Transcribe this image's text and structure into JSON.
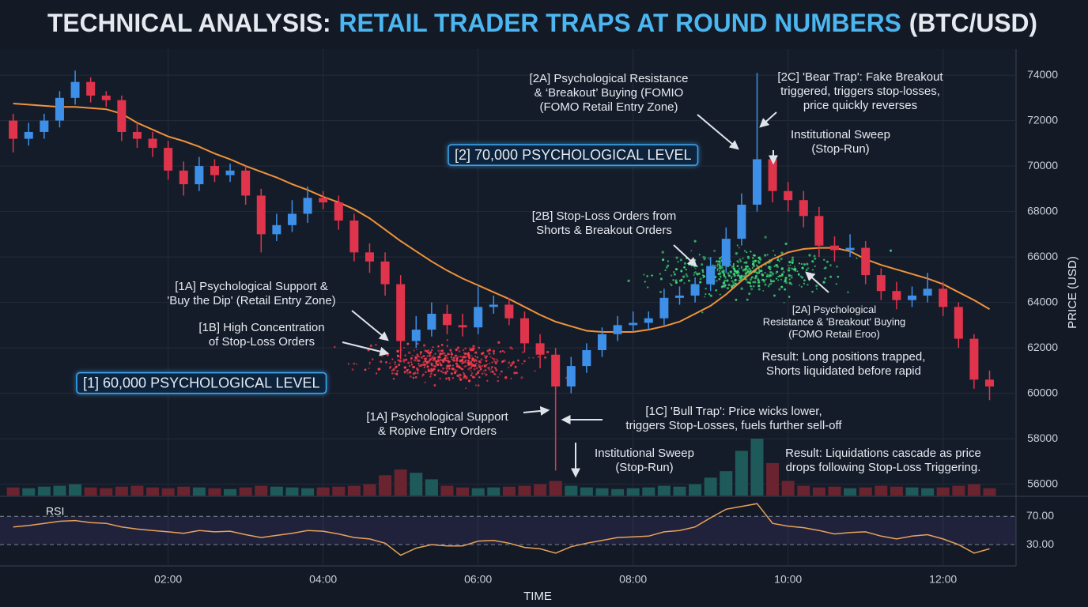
{
  "chart_data": {
    "type": "candlestick",
    "title": [
      "TECHNICAL ANALYSIS:",
      "RETAIL TRADER TRAPS AT ROUND NUMBERS",
      "(BTC/USD)"
    ],
    "y_label": "PRICE (USD)",
    "x_label": "TIME",
    "x": [
      0,
      0.2,
      0.4,
      0.6,
      0.8,
      1,
      1.2,
      1.4,
      1.6,
      1.8,
      2,
      2.2,
      2.4,
      2.6,
      2.8,
      3,
      3.2,
      3.4,
      3.6,
      3.8,
      4,
      4.2,
      4.4,
      4.6,
      4.8,
      5,
      5.2,
      5.4,
      5.6,
      5.8,
      6,
      6.2,
      6.4,
      6.6,
      6.8,
      7,
      7.2,
      7.4,
      7.6,
      7.8,
      8,
      8.2,
      8.4,
      8.6,
      8.8,
      9,
      9.2,
      9.4,
      9.6,
      9.8,
      10,
      10.2,
      10.4,
      10.6,
      10.8,
      11,
      11.2,
      11.4,
      11.6,
      11.8,
      12,
      12.2,
      12.4,
      12.6
    ],
    "xlim": [
      -0.17,
      12.85
    ],
    "xticks": [
      {
        "value": 2,
        "label": "02:00"
      },
      {
        "value": 4,
        "label": "04:00"
      },
      {
        "value": 6,
        "label": "06:00"
      },
      {
        "value": 8,
        "label": "08:00"
      },
      {
        "value": 10,
        "label": "10:00"
      },
      {
        "value": 12,
        "label": "12:00"
      }
    ],
    "ylim": [
      55500,
      75150
    ],
    "yticks": [
      56000,
      58000,
      60000,
      62000,
      64000,
      66000,
      68000,
      70000,
      72000,
      74000
    ],
    "colors": {
      "up": "#3d8fe8",
      "down": "#e0344c"
    },
    "open": [
      72000,
      71200,
      71500,
      72000,
      73000,
      73700,
      73100,
      72900,
      71500,
      71200,
      70800,
      69800,
      69200,
      70000,
      69600,
      69800,
      68700,
      67000,
      67400,
      67900,
      68600,
      68400,
      67600,
      66200,
      65800,
      64800,
      62300,
      62800,
      63500,
      63000,
      62900,
      63800,
      63900,
      63300,
      62200,
      61700,
      60300,
      61200,
      61900,
      62600,
      63000,
      63100,
      63300,
      64200,
      64300,
      64800,
      65600,
      66800,
      68300,
      70300,
      68900,
      68500,
      67800,
      66500,
      66300,
      66400,
      65200,
      64500,
      64100,
      64300,
      64600,
      63800,
      62400,
      60600
    ],
    "high": [
      72300,
      71900,
      72300,
      73300,
      74200,
      73900,
      73300,
      73100,
      71900,
      71500,
      71100,
      70200,
      70400,
      70300,
      70100,
      70000,
      69000,
      67900,
      68500,
      69100,
      68900,
      68700,
      67900,
      66600,
      66200,
      65200,
      63400,
      64000,
      63900,
      63500,
      64700,
      64300,
      64200,
      63600,
      62600,
      62000,
      61600,
      62200,
      62900,
      63400,
      63600,
      63600,
      64600,
      64700,
      65100,
      66000,
      67300,
      68800,
      74100,
      70500,
      69300,
      68900,
      68200,
      66900,
      67000,
      66700,
      65500,
      64900,
      64700,
      65300,
      64900,
      64000,
      62600,
      61000
    ],
    "low": [
      70600,
      70900,
      71200,
      71700,
      72700,
      72800,
      72600,
      71100,
      70800,
      70400,
      69400,
      68700,
      68900,
      69300,
      69300,
      68300,
      66200,
      66700,
      67100,
      67500,
      68100,
      67200,
      65800,
      65300,
      64300,
      61500,
      62000,
      62500,
      62600,
      62500,
      62600,
      63500,
      63000,
      61800,
      61100,
      56600,
      60000,
      60900,
      61600,
      62300,
      62700,
      62800,
      63000,
      63900,
      64000,
      64500,
      65300,
      66500,
      68000,
      68400,
      68000,
      67300,
      66000,
      65800,
      66000,
      64800,
      64100,
      63700,
      63800,
      64000,
      63400,
      62000,
      60200,
      59700
    ],
    "close": [
      71200,
      71500,
      72000,
      73000,
      73700,
      73100,
      72900,
      71500,
      71200,
      70800,
      69800,
      69200,
      70000,
      69600,
      69800,
      68700,
      67000,
      67400,
      67900,
      68600,
      68400,
      67600,
      66200,
      65800,
      64800,
      62300,
      62800,
      63500,
      63000,
      62900,
      63800,
      63900,
      63300,
      62200,
      61700,
      60300,
      61200,
      61900,
      62600,
      63000,
      63100,
      63300,
      64200,
      64300,
      64800,
      65600,
      66800,
      68300,
      70300,
      68900,
      68500,
      67800,
      66500,
      66300,
      66400,
      65200,
      64500,
      64100,
      64300,
      64600,
      63800,
      62400,
      60600,
      60300
    ],
    "ma": {
      "color": "#f0923a",
      "values": [
        72750,
        72700,
        72650,
        72600,
        72600,
        72550,
        72500,
        72300,
        71900,
        71600,
        71300,
        71100,
        70850,
        70550,
        70300,
        70000,
        69750,
        69500,
        69200,
        68950,
        68650,
        68400,
        68100,
        67700,
        67200,
        66700,
        66250,
        65800,
        65400,
        65050,
        64750,
        64450,
        64150,
        63800,
        63450,
        63150,
        62950,
        62750,
        62700,
        62700,
        62700,
        62800,
        62950,
        63150,
        63500,
        63850,
        64350,
        64950,
        65500,
        65900,
        66200,
        66350,
        66400,
        66400,
        66250,
        65900,
        65650,
        65450,
        65250,
        65050,
        64800,
        64450,
        64100,
        63700
      ]
    },
    "volume": [
      10,
      9,
      11,
      12,
      14,
      10,
      9,
      11,
      12,
      10,
      9,
      11,
      10,
      9,
      8,
      10,
      12,
      11,
      10,
      9,
      10,
      11,
      12,
      14,
      25,
      32,
      28,
      20,
      12,
      10,
      9,
      10,
      11,
      12,
      14,
      18,
      12,
      10,
      9,
      8,
      9,
      10,
      12,
      11,
      14,
      22,
      30,
      55,
      70,
      40,
      18,
      12,
      10,
      11,
      9,
      10,
      12,
      11,
      10,
      9,
      10,
      12,
      14,
      9
    ],
    "levels": [
      {
        "value": 70000,
        "label": "[2] 70,000 PSYCHOLOGICAL LEVEL"
      },
      {
        "value": 60000,
        "label": "[1] 60,000 PSYCHOLOGICAL LEVEL"
      }
    ],
    "rsi": {
      "label": "RSI",
      "color": "#e8a25a",
      "values": [
        55,
        57,
        60,
        63,
        64,
        61,
        60,
        55,
        52,
        50,
        48,
        46,
        50,
        48,
        49,
        44,
        40,
        43,
        46,
        50,
        49,
        45,
        40,
        38,
        32,
        15,
        25,
        30,
        28,
        28,
        35,
        36,
        32,
        26,
        24,
        18,
        27,
        32,
        36,
        40,
        41,
        42,
        48,
        50,
        55,
        68,
        80,
        84,
        88,
        60,
        56,
        54,
        50,
        45,
        47,
        48,
        42,
        38,
        42,
        44,
        38,
        30,
        18,
        24
      ],
      "ylim": [
        1,
        96
      ],
      "yticks": [
        {
          "value": 30,
          "label": "30.00"
        },
        {
          "value": 70,
          "label": "70.00"
        }
      ]
    },
    "annotations": [
      [
        "[2A] Psychological Resistance",
        "& ‘Breakout’ Buying (FOMIO",
        "(FOMO Retail Entry Zone)"
      ],
      [
        "[2C] 'Bear Trap': Fake Breakout",
        "triggered, triggers stop-losses,",
        "price quickly reverses"
      ],
      [
        "Institutional Sweep",
        "(Stop-Run)"
      ],
      [
        "[2B] Stop-Loss Orders from",
        "Shorts & Breakout Orders"
      ],
      [
        "[1A] Psychological Support &",
        "'Buy the Dip' (Retail Entry Zone)"
      ],
      [
        "[1B] High Concentration",
        "of Stop-Loss Orders"
      ],
      [
        "[2A] Psychological",
        "Resistance & 'Breakout' Buying",
        "(FOMO Retail Eroo)"
      ],
      [
        "Result: Long positions trapped,",
        "Shorts liquidated before rapid"
      ],
      [
        "[1A] Psychological Support",
        "& Ropive Entry Orders"
      ],
      [
        "[1C] 'Bull Trap': Price wicks lower,",
        "triggers Stop-Losses, fuels further sell-off"
      ],
      [
        "Institutional Sweep",
        "(Stop-Run)"
      ],
      [
        "Result: Liquidations cascade as price",
        "drops following Stop-Loss Triggering."
      ]
    ]
  }
}
